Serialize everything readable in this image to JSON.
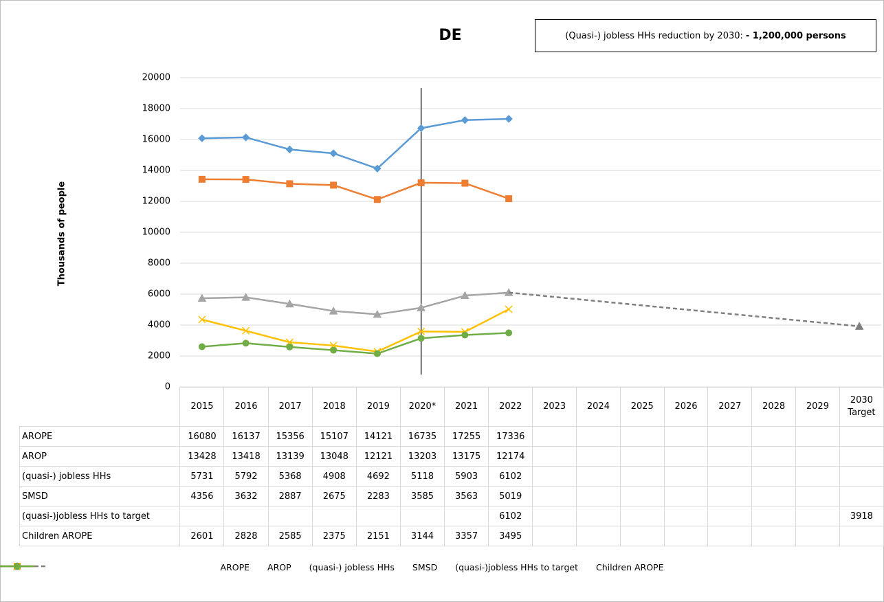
{
  "chart_data": {
    "type": "line",
    "title": "DE",
    "annotation": {
      "text": "(Quasi-) jobless HHs reduction by 2030:",
      "highlight": "- 1,200,000 persons"
    },
    "y_label": "Thousands  of people",
    "categories": [
      "2015",
      "2016",
      "2017",
      "2018",
      "2019",
      "2020*",
      "2021",
      "2022",
      "2023",
      "2024",
      "2025",
      "2026",
      "2027",
      "2028",
      "2029",
      "2030 Target"
    ],
    "ylim": [
      0,
      20000
    ],
    "yticks": [
      0,
      2000,
      4000,
      6000,
      8000,
      10000,
      12000,
      14000,
      16000,
      18000,
      20000
    ],
    "grid": true,
    "legend": "bottom",
    "series": [
      {
        "name": "AROPE",
        "color": "#5b9bd5",
        "marker": "diamond",
        "values": [
          16080,
          16137,
          15356,
          15107,
          14121,
          16735,
          17255,
          17336,
          null,
          null,
          null,
          null,
          null,
          null,
          null,
          null
        ]
      },
      {
        "name": "AROP",
        "color": "#ed7d31",
        "marker": "square",
        "values": [
          13428,
          13418,
          13139,
          13048,
          12121,
          13203,
          13175,
          12174,
          null,
          null,
          null,
          null,
          null,
          null,
          null,
          null
        ]
      },
      {
        "name": "(quasi-) jobless HHs",
        "color": "#a5a5a5",
        "marker": "triangle",
        "values": [
          5731,
          5792,
          5368,
          4908,
          4692,
          5118,
          5903,
          6102,
          null,
          null,
          null,
          null,
          null,
          null,
          null,
          null
        ]
      },
      {
        "name": "SMSD",
        "color": "#ffc000",
        "marker": "x",
        "values": [
          4356,
          3632,
          2887,
          2675,
          2283,
          3585,
          3563,
          5019,
          null,
          null,
          null,
          null,
          null,
          null,
          null,
          null
        ]
      },
      {
        "name": "(quasi-)jobless HHs to target",
        "color": "#7f7f7f",
        "marker": "triangle",
        "dashed": true,
        "connect_gaps": true,
        "values": [
          null,
          null,
          null,
          null,
          null,
          null,
          null,
          6102,
          null,
          null,
          null,
          null,
          null,
          null,
          null,
          3918
        ]
      },
      {
        "name": "Children AROPE",
        "color": "#70ad47",
        "marker": "circle",
        "values": [
          2601,
          2828,
          2585,
          2375,
          2151,
          3144,
          3357,
          3495,
          null,
          null,
          null,
          null,
          null,
          null,
          null,
          null
        ]
      }
    ]
  }
}
